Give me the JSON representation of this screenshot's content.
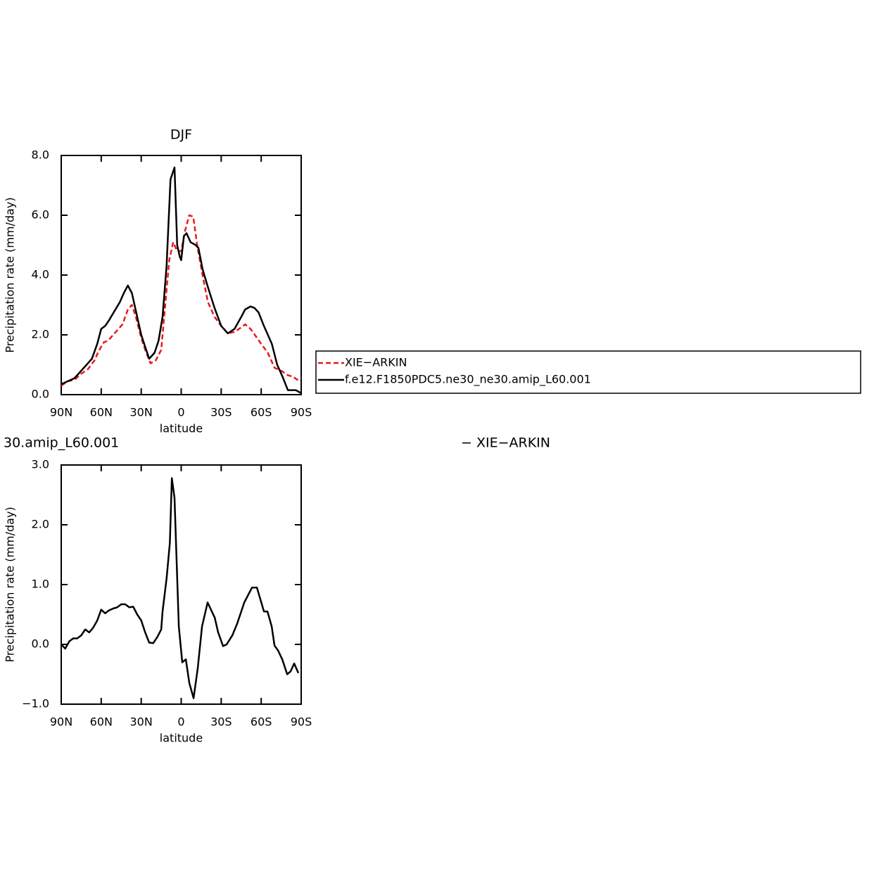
{
  "chart_data": [
    {
      "type": "line",
      "title": "DJF",
      "xlabel": "latitude",
      "ylabel": "Precipitation rate (mm/day)",
      "xlim": [
        90,
        -90
      ],
      "ylim": [
        0,
        8
      ],
      "xticks": [
        {
          "value": 90,
          "label": "90N"
        },
        {
          "value": 60,
          "label": "60N"
        },
        {
          "value": 30,
          "label": "30N"
        },
        0,
        {
          "value": -30,
          "label": "30S"
        },
        {
          "value": -60,
          "label": "60S"
        },
        {
          "value": -90,
          "label": "90S"
        }
      ],
      "yticks": [
        {
          "value": 0,
          "label": "0.0"
        },
        {
          "value": 2,
          "label": "2.0"
        },
        {
          "value": 4,
          "label": "4.0"
        },
        {
          "value": 6,
          "label": "6.0"
        },
        {
          "value": 8,
          "label": "8.0"
        }
      ],
      "legend": "right",
      "series": [
        {
          "name": "XIE−ARKIN",
          "color": "#e8191c",
          "dashed": true,
          "x": [
            90,
            85,
            80,
            75,
            70,
            65,
            62,
            58,
            55,
            52,
            48,
            44,
            40,
            37,
            34,
            30,
            27,
            23,
            19,
            15,
            12,
            9,
            6,
            3,
            0,
            -3,
            -6,
            -9,
            -12,
            -16,
            -20,
            -25,
            -30,
            -35,
            -40,
            -45,
            -48,
            -52,
            -56,
            -60,
            -65,
            -70,
            -75,
            -80,
            -84,
            -87,
            -90
          ],
          "values": [
            0.3,
            0.45,
            0.5,
            0.7,
            0.85,
            1.15,
            1.45,
            1.75,
            1.8,
            1.95,
            2.15,
            2.35,
            2.85,
            3.0,
            2.6,
            1.9,
            1.5,
            1.05,
            1.15,
            1.5,
            3.0,
            4.5,
            5.1,
            4.8,
            4.8,
            5.5,
            6.0,
            5.95,
            5.0,
            4.0,
            3.1,
            2.6,
            2.3,
            2.05,
            2.1,
            2.25,
            2.35,
            2.2,
            1.95,
            1.7,
            1.4,
            0.9,
            0.8,
            0.65,
            0.6,
            0.5,
            0.55
          ]
        },
        {
          "name": "f.e12.F1850PDC5.ne30_ne30.amip_L60.001",
          "color": "#000000",
          "dashed": false,
          "x": [
            90,
            85,
            80,
            75,
            70,
            67,
            63,
            60,
            57,
            54,
            50,
            46,
            43,
            40,
            37,
            34,
            30,
            27,
            24,
            20,
            17,
            14,
            11,
            8,
            5,
            3,
            1,
            0,
            -2,
            -4,
            -7,
            -11,
            -13,
            -16,
            -20,
            -25,
            -30,
            -35,
            -40,
            -45,
            -48,
            -52,
            -55,
            -58,
            -62,
            -68,
            -72,
            -76,
            -80,
            -83,
            -86,
            -90
          ],
          "values": [
            0.35,
            0.45,
            0.55,
            0.8,
            1.05,
            1.2,
            1.7,
            2.2,
            2.3,
            2.5,
            2.8,
            3.1,
            3.4,
            3.65,
            3.4,
            2.8,
            2.0,
            1.6,
            1.2,
            1.4,
            1.8,
            2.6,
            4.3,
            7.2,
            7.6,
            5.0,
            4.6,
            4.5,
            5.3,
            5.4,
            5.1,
            5.0,
            4.9,
            4.2,
            3.6,
            2.9,
            2.3,
            2.05,
            2.2,
            2.6,
            2.85,
            2.95,
            2.9,
            2.75,
            2.3,
            1.7,
            1.0,
            0.6,
            0.15,
            0.15,
            0.15,
            0.05
          ]
        }
      ]
    },
    {
      "type": "line",
      "title": "30.amip_L60.001",
      "title_right": "− XIE−ARKIN",
      "xlabel": "latitude",
      "ylabel": "Precipitation rate (mm/day)",
      "xlim": [
        90,
        -90
      ],
      "ylim": [
        -1,
        3
      ],
      "xticks": [
        {
          "value": 90,
          "label": "90N"
        },
        {
          "value": 60,
          "label": "60N"
        },
        {
          "value": 30,
          "label": "30N"
        },
        0,
        {
          "value": -30,
          "label": "30S"
        },
        {
          "value": -60,
          "label": "60S"
        },
        {
          "value": -90,
          "label": "90S"
        }
      ],
      "yticks": [
        {
          "value": -1,
          "label": "−1.0"
        },
        {
          "value": 0,
          "label": "0.0"
        },
        {
          "value": 1,
          "label": "1.0"
        },
        {
          "value": 2,
          "label": "2.0"
        },
        {
          "value": 3,
          "label": "3.0"
        }
      ],
      "series": [
        {
          "color": "#000000",
          "dashed": false,
          "x": [
            90,
            87,
            84,
            81,
            78,
            75,
            72,
            69,
            66,
            63,
            60,
            57,
            54,
            51,
            48,
            45,
            42,
            39,
            36,
            33,
            30,
            27,
            24,
            21,
            18,
            15,
            14,
            11,
            8.5,
            7,
            5,
            1.8,
            -0.8,
            -3.5,
            -6.1,
            -9.3,
            -12.4,
            -15.6,
            -19.8,
            -25.1,
            -27.7,
            -31.4,
            -34.1,
            -38.3,
            -42,
            -47.3,
            -53.1,
            -56.8,
            -62.1,
            -64.7,
            -67.9,
            -70,
            -72.6,
            -75.8,
            -79.5,
            -82.1,
            -84.8,
            -87.9
          ],
          "values": [
            0.0,
            -0.07,
            0.05,
            0.1,
            0.1,
            0.15,
            0.25,
            0.2,
            0.28,
            0.4,
            0.58,
            0.52,
            0.57,
            0.6,
            0.62,
            0.67,
            0.67,
            0.62,
            0.63,
            0.5,
            0.4,
            0.2,
            0.03,
            0.02,
            0.12,
            0.25,
            0.55,
            1.1,
            1.7,
            2.78,
            2.45,
            0.3,
            -0.3,
            -0.25,
            -0.65,
            -0.9,
            -0.4,
            0.3,
            0.7,
            0.45,
            0.2,
            -0.03,
            0.0,
            0.15,
            0.35,
            0.7,
            0.95,
            0.95,
            0.55,
            0.55,
            0.3,
            -0.02,
            -0.1,
            -0.25,
            -0.5,
            -0.45,
            -0.32,
            -0.48
          ]
        }
      ]
    }
  ]
}
